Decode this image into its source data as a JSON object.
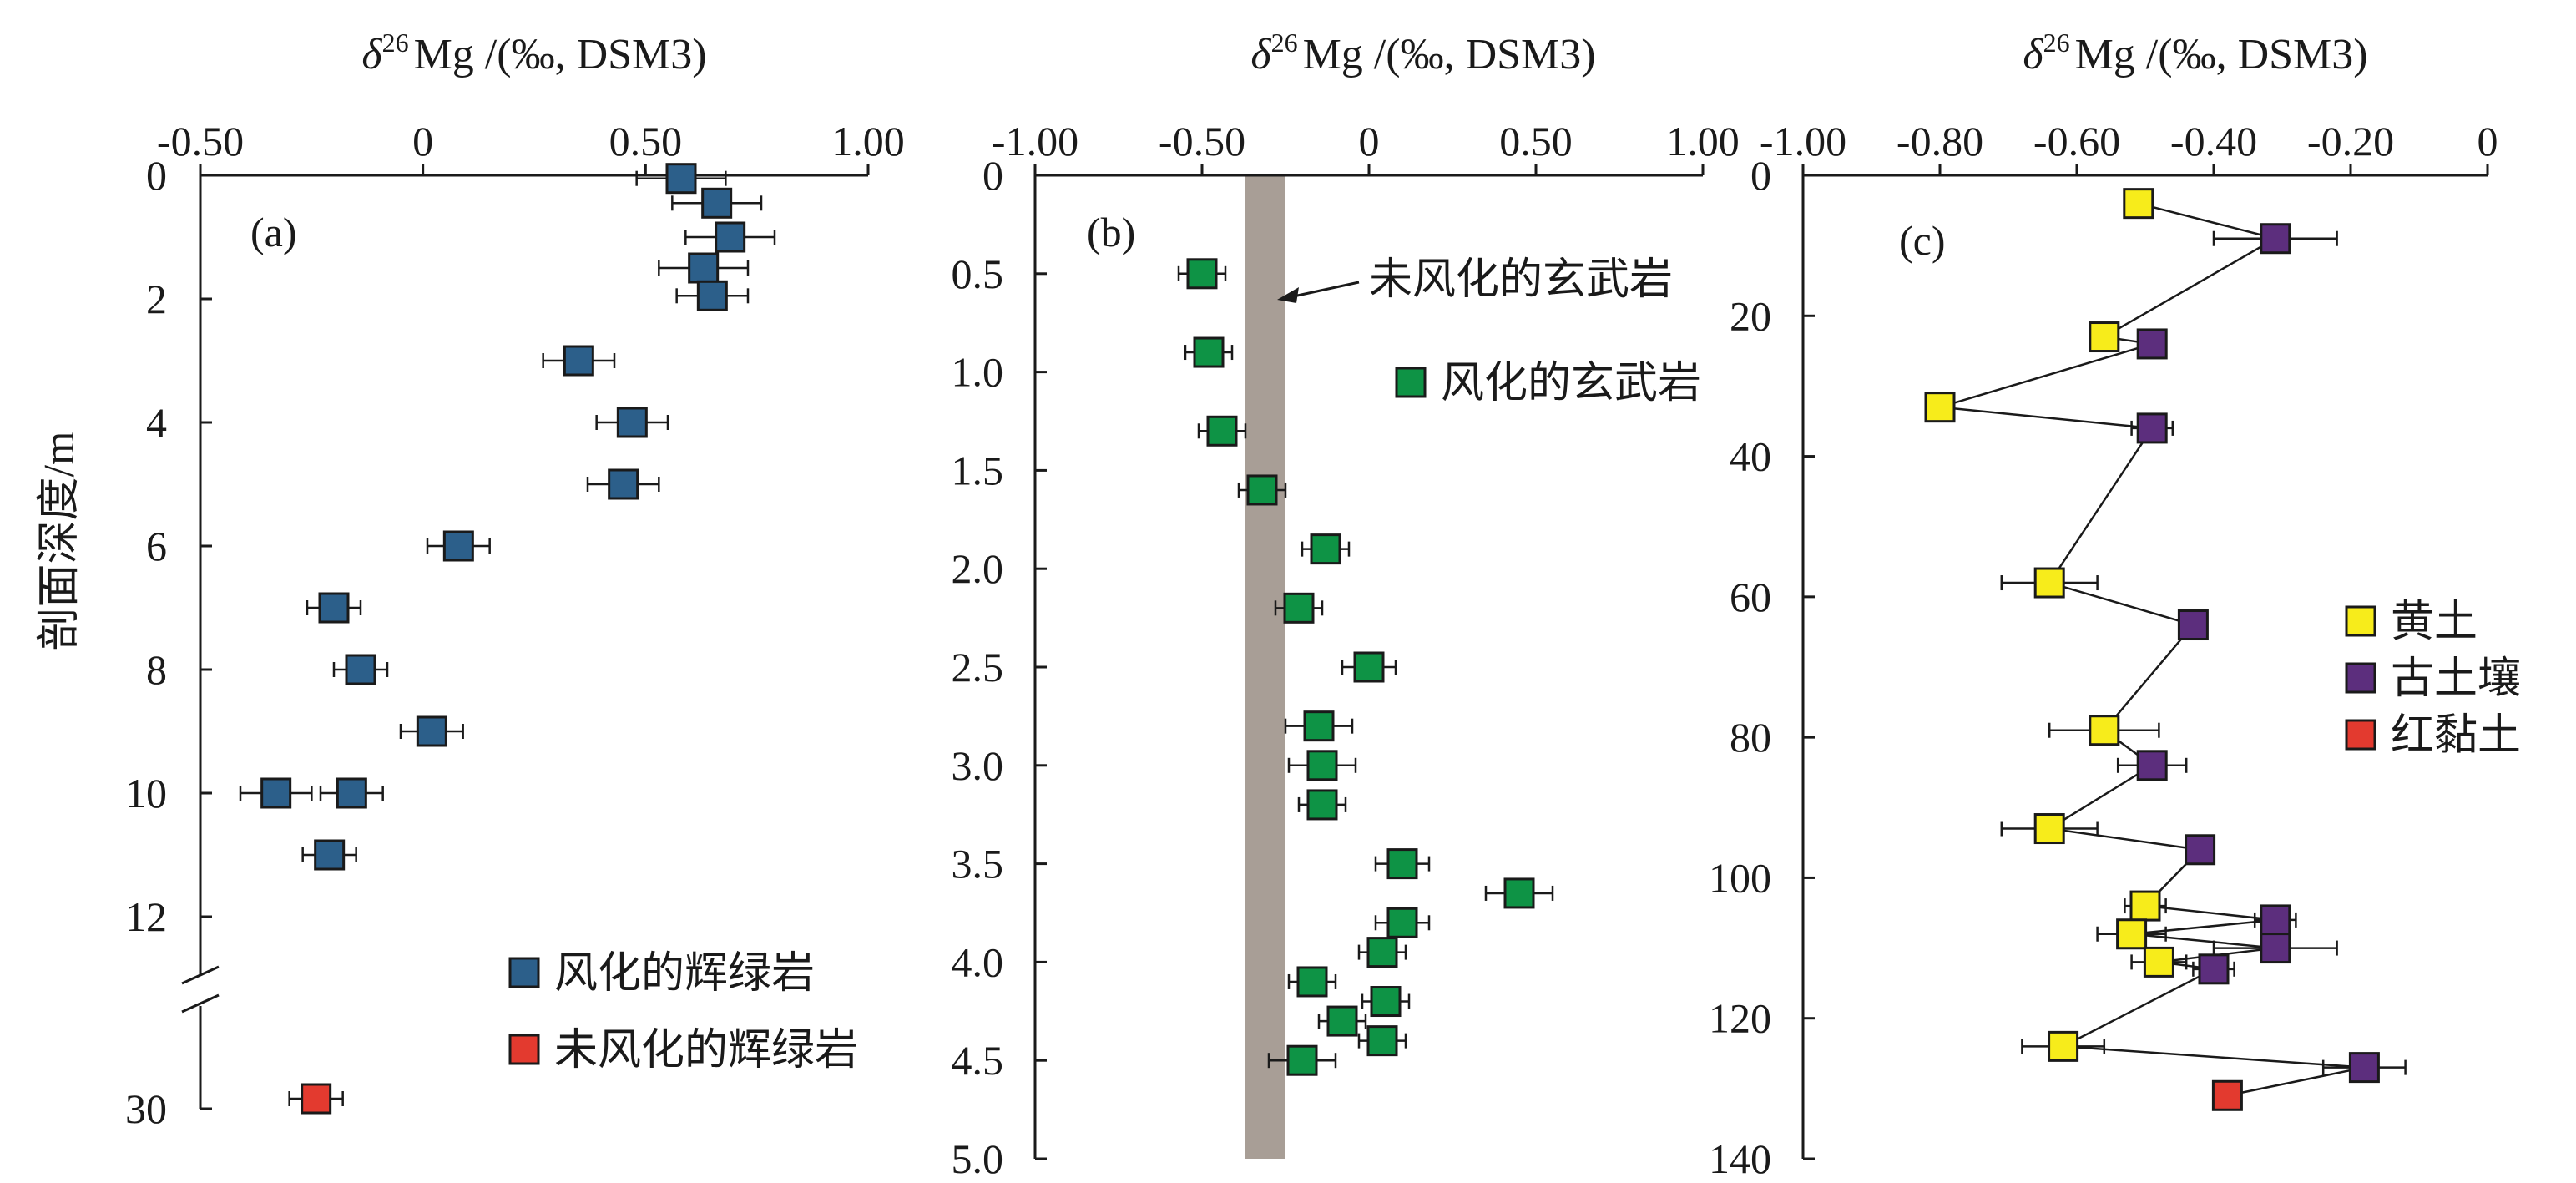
{
  "figure": {
    "y_axis_title": "剖面深度/m"
  },
  "chart_data": [
    {
      "type": "scatter",
      "panel_label": "(a)",
      "xlabel": "δ²⁶Mg /(‰, DSM3)",
      "xlabel_delta": "δ",
      "xlabel_sup": "26",
      "xlabel_rest": "Mg /(‰, DSM3)",
      "xlim": [
        -0.5,
        1.0
      ],
      "x_tick_labels": [
        "-0.50",
        "0",
        "0.50",
        "1.00"
      ],
      "x_ticks": [
        -0.5,
        0,
        0.5,
        1.0
      ],
      "ylim": [
        0,
        12.5
      ],
      "y_ticks": [
        0,
        2,
        4,
        6,
        8,
        10,
        12
      ],
      "y_tick_labels": [
        "0",
        "2",
        "4",
        "6",
        "8",
        "10",
        "12"
      ],
      "y_break": true,
      "lower_segment": {
        "y_ticks": [
          30
        ],
        "y_tick_labels": [
          "30"
        ]
      },
      "series": [
        {
          "name": "风化的辉绿岩",
          "color": "#2c5f8a",
          "points": [
            {
              "x": 0.58,
              "y": 0.05,
              "err": 0.1
            },
            {
              "x": 0.66,
              "y": 0.45,
              "err": 0.1
            },
            {
              "x": 0.69,
              "y": 1.0,
              "err": 0.1
            },
            {
              "x": 0.63,
              "y": 1.5,
              "err": 0.1
            },
            {
              "x": 0.65,
              "y": 1.95,
              "err": 0.08
            },
            {
              "x": 0.35,
              "y": 3.0,
              "err": 0.08
            },
            {
              "x": 0.47,
              "y": 4.0,
              "err": 0.08
            },
            {
              "x": 0.45,
              "y": 5.0,
              "err": 0.08
            },
            {
              "x": 0.08,
              "y": 6.0,
              "err": 0.07
            },
            {
              "x": -0.2,
              "y": 7.0,
              "err": 0.06
            },
            {
              "x": -0.14,
              "y": 8.0,
              "err": 0.06
            },
            {
              "x": 0.02,
              "y": 9.0,
              "err": 0.07
            },
            {
              "x": -0.33,
              "y": 10.0,
              "err": 0.08
            },
            {
              "x": -0.16,
              "y": 10.0,
              "err": 0.07
            },
            {
              "x": -0.21,
              "y": 11.0,
              "err": 0.06
            }
          ]
        },
        {
          "name": "未风化的辉绿岩",
          "color": "#e33a2f",
          "lower_segment": true,
          "points": [
            {
              "x": -0.24,
              "y": 30,
              "err": 0.06
            }
          ]
        }
      ],
      "legend_position": "bottom-right"
    },
    {
      "type": "scatter",
      "panel_label": "(b)",
      "xlabel": "δ²⁶Mg /(‰, DSM3)",
      "xlabel_delta": "δ",
      "xlabel_sup": "26",
      "xlabel_rest": "Mg /(‰, DSM3)",
      "xlim": [
        -1.0,
        1.0
      ],
      "x_ticks": [
        -1.0,
        -0.5,
        0,
        0.5,
        1.0
      ],
      "x_tick_labels": [
        "-1.00",
        "-0.50",
        "0",
        "0.50",
        "1.00"
      ],
      "ylim": [
        0,
        5.0
      ],
      "y_ticks": [
        0,
        0.5,
        1.0,
        1.5,
        2.0,
        2.5,
        3.0,
        3.5,
        4.0,
        4.5,
        5.0
      ],
      "y_tick_labels": [
        "0",
        "0.5",
        "1.0",
        "1.5",
        "2.0",
        "2.5",
        "3.0",
        "3.5",
        "4.0",
        "4.5",
        "5.0"
      ],
      "band": {
        "label": "未风化的玄武岩",
        "x_min": -0.37,
        "x_max": -0.25,
        "color": "#a89e96"
      },
      "series": [
        {
          "name": "风化的玄武岩",
          "color": "#0e9345",
          "points": [
            {
              "x": -0.5,
              "y": 0.5,
              "err": 0.07
            },
            {
              "x": -0.48,
              "y": 0.9,
              "err": 0.07
            },
            {
              "x": -0.44,
              "y": 1.3,
              "err": 0.07
            },
            {
              "x": -0.32,
              "y": 1.6,
              "err": 0.07
            },
            {
              "x": -0.13,
              "y": 1.9,
              "err": 0.07
            },
            {
              "x": -0.21,
              "y": 2.2,
              "err": 0.07
            },
            {
              "x": 0.0,
              "y": 2.5,
              "err": 0.08
            },
            {
              "x": -0.15,
              "y": 2.8,
              "err": 0.1
            },
            {
              "x": -0.14,
              "y": 3.0,
              "err": 0.1
            },
            {
              "x": -0.14,
              "y": 3.2,
              "err": 0.07
            },
            {
              "x": 0.1,
              "y": 3.5,
              "err": 0.08
            },
            {
              "x": 0.45,
              "y": 3.65,
              "err": 0.1
            },
            {
              "x": 0.1,
              "y": 3.8,
              "err": 0.08
            },
            {
              "x": 0.04,
              "y": 3.95,
              "err": 0.07
            },
            {
              "x": -0.17,
              "y": 4.1,
              "err": 0.07
            },
            {
              "x": 0.05,
              "y": 4.2,
              "err": 0.07
            },
            {
              "x": -0.08,
              "y": 4.3,
              "err": 0.07
            },
            {
              "x": 0.04,
              "y": 4.4,
              "err": 0.07
            },
            {
              "x": -0.2,
              "y": 4.5,
              "err": 0.1
            }
          ]
        }
      ],
      "legend_position": "top-right"
    },
    {
      "type": "line",
      "panel_label": "(c)",
      "xlabel": "δ²⁶Mg /(‰, DSM3)",
      "xlabel_delta": "δ",
      "xlabel_sup": "26",
      "xlabel_rest": "Mg /(‰, DSM3)",
      "xlim": [
        -1.0,
        0
      ],
      "x_ticks": [
        -1.0,
        -0.8,
        -0.6,
        -0.4,
        -0.2,
        0
      ],
      "x_tick_labels": [
        "-1.00",
        "-0.80",
        "-0.60",
        "-0.40",
        "-0.20",
        "0"
      ],
      "ylim": [
        0,
        140
      ],
      "y_ticks": [
        0,
        20,
        40,
        60,
        80,
        100,
        120,
        140
      ],
      "y_tick_labels": [
        "0",
        "20",
        "40",
        "60",
        "80",
        "100",
        "120",
        "140"
      ],
      "connected_sequence": [
        {
          "x": -0.51,
          "y": 4,
          "series": 0,
          "err": 0
        },
        {
          "x": -0.31,
          "y": 9,
          "series": 1,
          "err": 0.09
        },
        {
          "x": -0.56,
          "y": 23,
          "series": 0,
          "err": 0
        },
        {
          "x": -0.49,
          "y": 24,
          "series": 1,
          "err": 0
        },
        {
          "x": -0.8,
          "y": 33,
          "series": 0,
          "err": 0
        },
        {
          "x": -0.49,
          "y": 36,
          "series": 1,
          "err": 0.03
        },
        {
          "x": -0.64,
          "y": 58,
          "series": 0,
          "err": 0.07
        },
        {
          "x": -0.43,
          "y": 64,
          "series": 1,
          "err": 0
        },
        {
          "x": -0.56,
          "y": 79,
          "series": 0,
          "err": 0.08
        },
        {
          "x": -0.49,
          "y": 84,
          "series": 1,
          "err": 0.05
        },
        {
          "x": -0.64,
          "y": 93,
          "series": 0,
          "err": 0.07
        },
        {
          "x": -0.42,
          "y": 96,
          "series": 1,
          "err": 0
        },
        {
          "x": -0.5,
          "y": 104,
          "series": 0,
          "err": 0.03
        },
        {
          "x": -0.31,
          "y": 106,
          "series": 1,
          "err": 0.03
        },
        {
          "x": -0.52,
          "y": 108,
          "series": 0,
          "err": 0.05
        },
        {
          "x": -0.31,
          "y": 110,
          "series": 1,
          "err": 0.09
        },
        {
          "x": -0.48,
          "y": 112,
          "series": 0,
          "err": 0.04
        },
        {
          "x": -0.4,
          "y": 113,
          "series": 1,
          "err": 0.03
        },
        {
          "x": -0.62,
          "y": 124,
          "series": 0,
          "err": 0.06
        },
        {
          "x": -0.18,
          "y": 127,
          "series": 1,
          "err": 0.06
        },
        {
          "x": -0.38,
          "y": 131,
          "series": 2,
          "err": 0
        }
      ],
      "series": [
        {
          "name": "黄土",
          "color": "#f7ec1b"
        },
        {
          "name": "古土壤",
          "color": "#5c2e7d"
        },
        {
          "name": "红黏土",
          "color": "#e33a2f"
        }
      ],
      "legend_position": "center-right"
    }
  ]
}
